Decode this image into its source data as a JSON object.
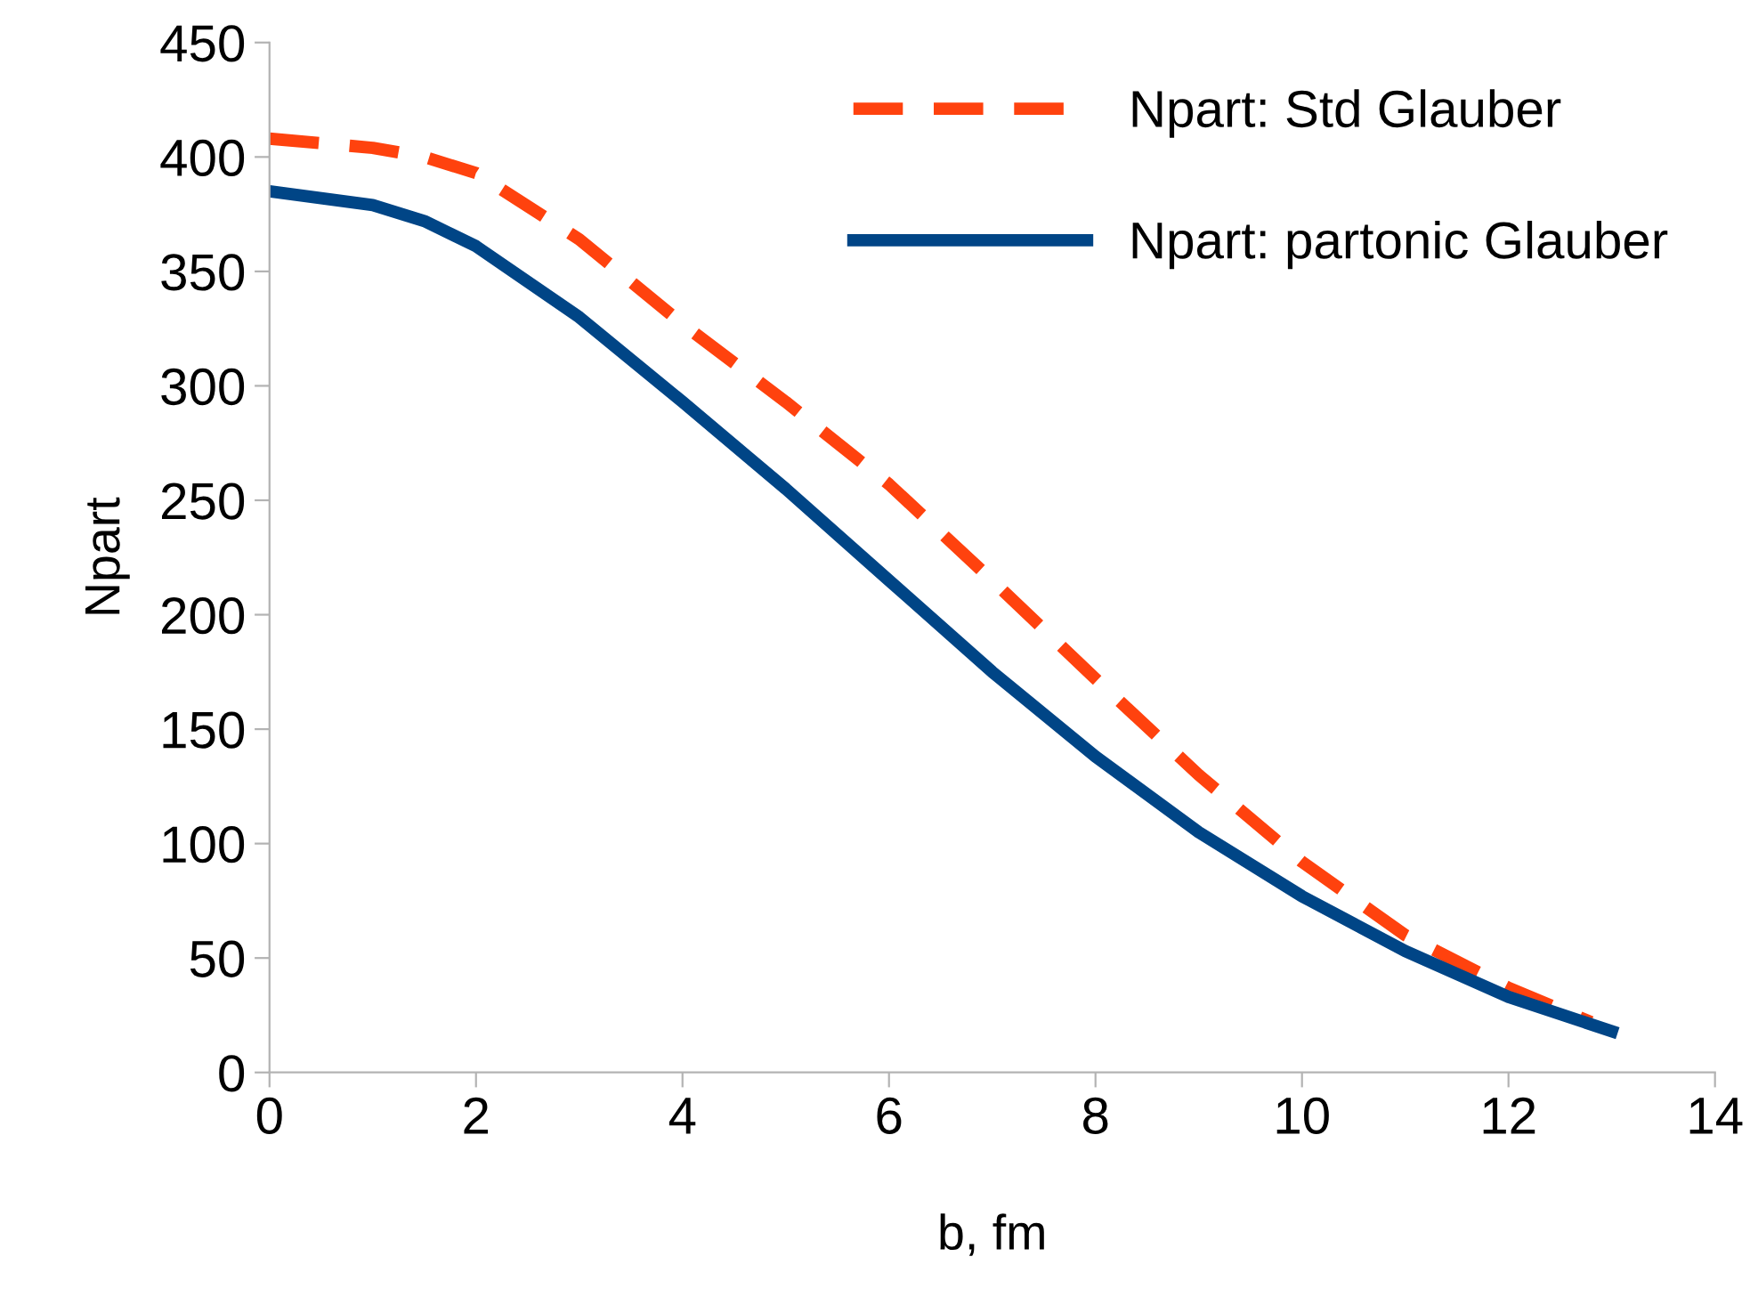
{
  "chart_data": {
    "type": "line",
    "xlabel": "b, fm",
    "ylabel": "Npart",
    "xlim": [
      0,
      14
    ],
    "xticks": [
      0,
      2,
      4,
      6,
      8,
      10,
      12,
      14
    ],
    "ylim": [
      0,
      450
    ],
    "yticks": [
      0,
      50,
      100,
      150,
      200,
      250,
      300,
      350,
      400,
      450
    ],
    "grid": false,
    "legend": "top right",
    "marker": "none",
    "series": [
      {
        "name": "Npart: Std Glauber",
        "color": "#ff420e",
        "line_style": "dashed",
        "x": [
          0,
          1,
          1.5,
          2,
          3,
          4,
          5,
          6,
          7,
          8,
          9,
          10,
          11,
          12,
          12.8
        ],
        "values": [
          408,
          404,
          400,
          393,
          364,
          327,
          293,
          257,
          215,
          172,
          130,
          92,
          60,
          37,
          22
        ]
      },
      {
        "name": "Npart: partonic Glauber",
        "color": "#004586",
        "line_style": "solid",
        "x": [
          0,
          1,
          1.5,
          2,
          3,
          4,
          5,
          6,
          7,
          8,
          9,
          10,
          11,
          12,
          13
        ],
        "values": [
          385,
          379,
          372,
          361,
          330,
          293,
          255,
          215,
          175,
          138,
          105,
          77,
          53,
          33,
          18
        ]
      }
    ]
  }
}
